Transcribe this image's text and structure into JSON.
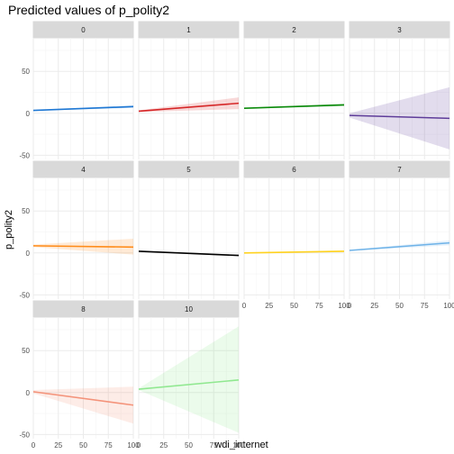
{
  "chart_data": {
    "type": "line",
    "title": "Predicted values of p_polity2",
    "xlabel": "wdi_internet",
    "ylabel": "p_polity2",
    "xlim": [
      0,
      100
    ],
    "ylim": [
      -55,
      90
    ],
    "x_ticks": [
      "0",
      "25",
      "50",
      "75",
      "100"
    ],
    "y_ticks": [
      "-50",
      "0",
      "50"
    ],
    "y_tick_values": [
      -50,
      0,
      50
    ],
    "x_tick_values": [
      0,
      25,
      50,
      75,
      100
    ],
    "grid": true,
    "panels": [
      {
        "label": "0",
        "color": "#1f78d4",
        "x": [
          0,
          100
        ],
        "y": [
          3.5,
          8
        ],
        "lower": [
          3,
          6.5
        ],
        "upper": [
          4,
          9.5
        ]
      },
      {
        "label": "1",
        "color": "#d62728",
        "x": [
          0,
          100
        ],
        "y": [
          2.5,
          12
        ],
        "lower": [
          1.5,
          5
        ],
        "upper": [
          3.5,
          19
        ]
      },
      {
        "label": "2",
        "color": "#0a8a0a",
        "x": [
          0,
          100
        ],
        "y": [
          6,
          10
        ],
        "lower": [
          5.5,
          8.5
        ],
        "upper": [
          6.5,
          11.5
        ]
      },
      {
        "label": "3",
        "color": "#5e3c99",
        "x": [
          0,
          100
        ],
        "y": [
          -2.5,
          -6
        ],
        "lower": [
          -5,
          -43
        ],
        "upper": [
          0,
          31
        ]
      },
      {
        "label": "4",
        "color": "#ff8c1a",
        "x": [
          0,
          100
        ],
        "y": [
          8.5,
          7
        ],
        "lower": [
          7,
          -2
        ],
        "upper": [
          10,
          17
        ]
      },
      {
        "label": "5",
        "color": "#000000",
        "x": [
          0,
          100
        ],
        "y": [
          2,
          -3
        ],
        "lower": [
          1.5,
          -4
        ],
        "upper": [
          2.5,
          -2
        ]
      },
      {
        "label": "6",
        "color": "#ffd21f",
        "x": [
          0,
          100
        ],
        "y": [
          0,
          2
        ],
        "lower": [
          -0.5,
          1
        ],
        "upper": [
          0.5,
          3
        ]
      },
      {
        "label": "7",
        "color": "#6fb3e8",
        "x": [
          0,
          100
        ],
        "y": [
          3,
          12
        ],
        "lower": [
          2.5,
          9
        ],
        "upper": [
          3.5,
          15
        ]
      },
      {
        "label": "8",
        "color": "#f4937a",
        "x": [
          0,
          100
        ],
        "y": [
          1,
          -15
        ],
        "lower": [
          -1,
          -37
        ],
        "upper": [
          3,
          7
        ]
      },
      {
        "label": "10",
        "color": "#90e890",
        "x": [
          0,
          100
        ],
        "y": [
          4,
          15
        ],
        "lower": [
          3,
          -48
        ],
        "upper": [
          5,
          79
        ]
      }
    ]
  }
}
